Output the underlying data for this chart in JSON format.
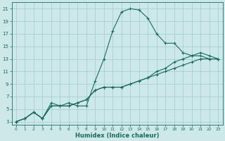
{
  "xlabel": "Humidex (Indice chaleur)",
  "bg_color": "#cce8e8",
  "grid_color": "#b0d8d8",
  "line_color": "#1a6b5a",
  "xlim": [
    -0.5,
    23.5
  ],
  "ylim": [
    2.5,
    22
  ],
  "xticks": [
    0,
    1,
    2,
    3,
    4,
    5,
    6,
    7,
    8,
    9,
    10,
    11,
    12,
    13,
    14,
    15,
    16,
    17,
    18,
    19,
    20,
    21,
    22,
    23
  ],
  "yticks": [
    3,
    5,
    7,
    9,
    11,
    13,
    15,
    17,
    19,
    21
  ],
  "series": [
    {
      "x": [
        0,
        1,
        2,
        3,
        4,
        5,
        6,
        7,
        8,
        9,
        10,
        11,
        12,
        13,
        14,
        15,
        16,
        17,
        18,
        19,
        20,
        21,
        22,
        23
      ],
      "y": [
        3,
        3.5,
        4.5,
        3.5,
        6,
        5.5,
        6,
        5.5,
        5.5,
        9.5,
        13,
        17.5,
        20.5,
        21,
        20.8,
        19.5,
        17,
        15.5,
        15.5,
        14,
        13.5,
        13.5,
        13,
        13
      ]
    },
    {
      "x": [
        0,
        1,
        2,
        3,
        4,
        5,
        6,
        7,
        8,
        9,
        10,
        11,
        12,
        13,
        14,
        15,
        16,
        17,
        18,
        19,
        20,
        21,
        22,
        23
      ],
      "y": [
        3,
        3.5,
        4.5,
        3.5,
        5.5,
        5.5,
        5.5,
        6,
        6.5,
        8,
        8.5,
        8.5,
        8.5,
        9,
        9.5,
        10,
        11,
        11.5,
        12.5,
        13,
        13.5,
        14,
        13.5,
        13
      ]
    },
    {
      "x": [
        0,
        1,
        2,
        3,
        4,
        5,
        6,
        7,
        8,
        9,
        10,
        11,
        12,
        13,
        14,
        15,
        16,
        17,
        18,
        19,
        20,
        21,
        22,
        23
      ],
      "y": [
        3,
        3.5,
        4.5,
        3.5,
        5.5,
        5.5,
        5.5,
        6,
        6.5,
        8,
        8.5,
        8.5,
        8.5,
        9,
        9.5,
        10,
        10.5,
        11,
        11.5,
        12,
        12.5,
        13,
        13,
        13
      ]
    }
  ]
}
